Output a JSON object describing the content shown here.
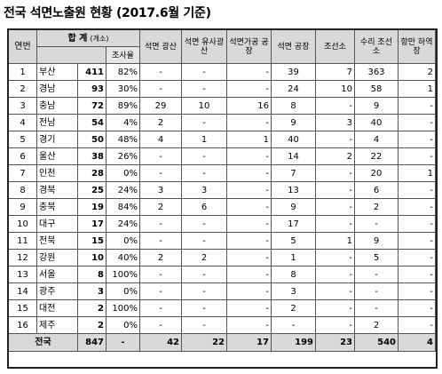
{
  "title": "전국 석면노출원 현황 (2017.6월 기준)",
  "headers": {
    "no": "연번",
    "total": "합 계",
    "total_unit": "(개소)",
    "pct": "조사율",
    "mine": "석면 광산",
    "similar_mine": "석면 유사광산",
    "processing": "석면가공 공장",
    "factory": "석면 공장",
    "shipyard": "조선소",
    "repair_shipyard": "수리 조선소",
    "port": "항만 하역장"
  },
  "rows": [
    {
      "no": "1",
      "region": "부산",
      "total": "411",
      "pct": "82%",
      "mine": "-",
      "similar": "-",
      "processing": "-",
      "factory": "39",
      "shipyard": "7",
      "repair": "363",
      "port": "2"
    },
    {
      "no": "2",
      "region": "경남",
      "total": "93",
      "pct": "30%",
      "mine": "-",
      "similar": "-",
      "processing": "-",
      "factory": "24",
      "shipyard": "10",
      "repair": "58",
      "port": "1"
    },
    {
      "no": "3",
      "region": "충남",
      "total": "72",
      "pct": "89%",
      "mine": "29",
      "similar": "10",
      "processing": "16",
      "factory": "8",
      "shipyard": "-",
      "repair": "9",
      "port": "-"
    },
    {
      "no": "4",
      "region": "전남",
      "total": "54",
      "pct": "4%",
      "mine": "2",
      "similar": "-",
      "processing": "-",
      "factory": "9",
      "shipyard": "3",
      "repair": "40",
      "port": "-"
    },
    {
      "no": "5",
      "region": "경기",
      "total": "50",
      "pct": "48%",
      "mine": "4",
      "similar": "1",
      "processing": "1",
      "factory": "40",
      "shipyard": "-",
      "repair": "4",
      "port": "-"
    },
    {
      "no": "6",
      "region": "울산",
      "total": "38",
      "pct": "26%",
      "mine": "-",
      "similar": "-",
      "processing": "-",
      "factory": "14",
      "shipyard": "2",
      "repair": "22",
      "port": "-"
    },
    {
      "no": "7",
      "region": "인천",
      "total": "28",
      "pct": "0%",
      "mine": "-",
      "similar": "-",
      "processing": "-",
      "factory": "7",
      "shipyard": "-",
      "repair": "20",
      "port": "1"
    },
    {
      "no": "8",
      "region": "경북",
      "total": "25",
      "pct": "24%",
      "mine": "3",
      "similar": "3",
      "processing": "-",
      "factory": "13",
      "shipyard": "-",
      "repair": "6",
      "port": "-"
    },
    {
      "no": "9",
      "region": "충북",
      "total": "19",
      "pct": "84%",
      "mine": "2",
      "similar": "6",
      "processing": "-",
      "factory": "9",
      "shipyard": "-",
      "repair": "2",
      "port": "-"
    },
    {
      "no": "10",
      "region": "대구",
      "total": "17",
      "pct": "24%",
      "mine": "-",
      "similar": "-",
      "processing": "-",
      "factory": "17",
      "shipyard": "-",
      "repair": "-",
      "port": "-"
    },
    {
      "no": "11",
      "region": "전북",
      "total": "15",
      "pct": "0%",
      "mine": "-",
      "similar": "-",
      "processing": "-",
      "factory": "5",
      "shipyard": "1",
      "repair": "9",
      "port": "-"
    },
    {
      "no": "12",
      "region": "강원",
      "total": "10",
      "pct": "40%",
      "mine": "2",
      "similar": "2",
      "processing": "-",
      "factory": "1",
      "shipyard": "-",
      "repair": "5",
      "port": "-"
    },
    {
      "no": "13",
      "region": "서울",
      "total": "8",
      "pct": "100%",
      "mine": "-",
      "similar": "-",
      "processing": "-",
      "factory": "8",
      "shipyard": "-",
      "repair": "-",
      "port": "-"
    },
    {
      "no": "14",
      "region": "광주",
      "total": "3",
      "pct": "0%",
      "mine": "-",
      "similar": "-",
      "processing": "-",
      "factory": "3",
      "shipyard": "-",
      "repair": "-",
      "port": "-"
    },
    {
      "no": "15",
      "region": "대전",
      "total": "2",
      "pct": "100%",
      "mine": "-",
      "similar": "-",
      "processing": "-",
      "factory": "2",
      "shipyard": "-",
      "repair": "-",
      "port": "-"
    },
    {
      "no": "16",
      "region": "제주",
      "total": "2",
      "pct": "0%",
      "mine": "-",
      "similar": "-",
      "processing": "-",
      "factory": "-",
      "shipyard": "-",
      "repair": "2",
      "port": "-"
    }
  ],
  "total_row": {
    "label": "전국",
    "total": "847",
    "pct": "-",
    "mine": "42",
    "similar": "22",
    "processing": "17",
    "factory": "199",
    "shipyard": "23",
    "repair": "540",
    "port": "4"
  }
}
